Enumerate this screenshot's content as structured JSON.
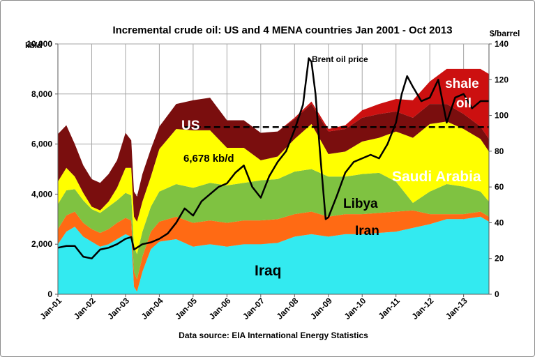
{
  "chart_data": {
    "type": "area",
    "title": "Incremental crude oil: US and 4 MENA countries  Jan 2001 - Oct 2013",
    "source": "Data source: EIA International Energy Statistics",
    "y_left": {
      "unit": "kb/d",
      "min": 0,
      "max": 10000,
      "ticks": [
        "0",
        "2,000",
        "4,000",
        "6,000",
        "8,000",
        "10,000"
      ]
    },
    "y_right": {
      "unit": "$/barrel",
      "min": 0,
      "max": 140,
      "ticks": [
        "0",
        "20",
        "40",
        "60",
        "80",
        "100",
        "120",
        "140"
      ]
    },
    "x_ticks": [
      "Jan-01",
      "Jan-02",
      "Jan-03",
      "Jan-04",
      "Jan-05",
      "Jan-06",
      "Jan-07",
      "Jan-08",
      "Jan-09",
      "Jan-10",
      "Jan-11",
      "Jan-12",
      "Jan-13"
    ],
    "x_range_years": [
      2001.0,
      2013.75
    ],
    "stack_order": [
      "Iraq",
      "Iran",
      "Libya",
      "Saudi Arabia",
      "US",
      "US shale oil"
    ],
    "colors": {
      "Iraq": "#33eaf0",
      "Iran": "#ff6a14",
      "Libya": "#7fc241",
      "Saudi Arabia": "#ffff00",
      "US": "#7a0e0e",
      "US shale oil": "#cc1010",
      "Brent oil price": "#000000",
      "average": "#000000"
    },
    "series": [
      {
        "name": "Iraq",
        "x": [
          2001.0,
          2001.25,
          2001.5,
          2001.75,
          2002.0,
          2002.25,
          2002.5,
          2002.75,
          2003.0,
          2003.17,
          2003.25,
          2003.34,
          2003.5,
          2003.75,
          2004.0,
          2004.5,
          2005.0,
          2005.5,
          2006.0,
          2006.5,
          2007.0,
          2007.5,
          2008.0,
          2008.5,
          2009.0,
          2009.5,
          2010.0,
          2010.5,
          2011.0,
          2011.5,
          2012.0,
          2012.5,
          2013.0,
          2013.5,
          2013.75
        ],
        "values": [
          2000,
          2500,
          2700,
          2300,
          2100,
          1900,
          2000,
          2200,
          2400,
          2300,
          300,
          100,
          900,
          1800,
          2100,
          2200,
          1900,
          2000,
          1900,
          2000,
          2000,
          2050,
          2300,
          2400,
          2300,
          2400,
          2400,
          2450,
          2500,
          2650,
          2800,
          3000,
          3000,
          3100,
          2900
        ]
      },
      {
        "name": "Iran",
        "x": [
          2001.0,
          2001.25,
          2001.5,
          2001.75,
          2002.0,
          2002.25,
          2002.5,
          2002.75,
          2003.0,
          2003.17,
          2003.25,
          2003.34,
          2003.5,
          2003.75,
          2004.0,
          2004.5,
          2005.0,
          2005.5,
          2006.0,
          2006.5,
          2007.0,
          2007.5,
          2008.0,
          2008.5,
          2009.0,
          2009.5,
          2010.0,
          2010.5,
          2011.0,
          2011.5,
          2012.0,
          2012.5,
          2013.0,
          2013.5,
          2013.75
        ],
        "values": [
          600,
          650,
          600,
          550,
          500,
          550,
          600,
          650,
          650,
          650,
          600,
          500,
          600,
          700,
          800,
          900,
          950,
          950,
          950,
          950,
          950,
          950,
          900,
          900,
          800,
          800,
          800,
          800,
          800,
          700,
          400,
          200,
          200,
          200,
          200
        ]
      },
      {
        "name": "Libya",
        "x": [
          2001.0,
          2001.25,
          2001.5,
          2001.75,
          2002.0,
          2002.25,
          2002.5,
          2002.75,
          2003.0,
          2003.17,
          2003.25,
          2003.34,
          2003.5,
          2003.75,
          2004.0,
          2004.5,
          2005.0,
          2005.5,
          2006.0,
          2006.5,
          2007.0,
          2007.5,
          2008.0,
          2008.5,
          2009.0,
          2009.5,
          2010.0,
          2010.5,
          2011.0,
          2011.5,
          2012.0,
          2012.5,
          2013.0,
          2013.5,
          2013.75
        ],
        "values": [
          1000,
          1000,
          900,
          900,
          800,
          800,
          900,
          900,
          1000,
          1000,
          1000,
          1000,
          1000,
          1000,
          1200,
          1300,
          1400,
          1500,
          1500,
          1500,
          1600,
          1600,
          1700,
          1700,
          1600,
          1500,
          1600,
          1600,
          1200,
          300,
          900,
          1200,
          1100,
          800,
          600
        ]
      },
      {
        "name": "Saudi Arabia",
        "x": [
          2001.0,
          2001.25,
          2001.5,
          2001.75,
          2002.0,
          2002.25,
          2002.5,
          2002.75,
          2003.0,
          2003.17,
          2003.25,
          2003.34,
          2003.5,
          2003.75,
          2004.0,
          2004.5,
          2005.0,
          2005.5,
          2006.0,
          2006.5,
          2007.0,
          2007.5,
          2008.0,
          2008.5,
          2009.0,
          2009.5,
          2010.0,
          2010.5,
          2011.0,
          2011.5,
          2012.0,
          2012.5,
          2013.0,
          2013.5,
          2013.75
        ],
        "values": [
          900,
          900,
          500,
          300,
          100,
          100,
          200,
          500,
          1000,
          1100,
          1200,
          1300,
          1200,
          1200,
          1700,
          2200,
          2300,
          2100,
          1500,
          1400,
          800,
          900,
          1300,
          1800,
          900,
          1000,
          1300,
          1400,
          2000,
          2600,
          2700,
          2500,
          2300,
          2100,
          2000
        ]
      },
      {
        "name": "US",
        "x": [
          2001.0,
          2001.25,
          2001.5,
          2001.75,
          2002.0,
          2002.25,
          2002.5,
          2002.75,
          2003.0,
          2003.17,
          2003.25,
          2003.34,
          2003.5,
          2003.75,
          2004.0,
          2004.5,
          2005.0,
          2005.5,
          2006.0,
          2006.5,
          2007.0,
          2007.5,
          2008.0,
          2008.5,
          2009.0,
          2009.5,
          2010.0,
          2010.5,
          2011.0,
          2011.5,
          2012.0,
          2012.5,
          2013.0,
          2013.5,
          2013.75
        ],
        "values": [
          1900,
          1700,
          1300,
          1100,
          1100,
          1100,
          1100,
          1100,
          1400,
          1100,
          1000,
          1000,
          1100,
          1100,
          900,
          1000,
          1200,
          1300,
          1100,
          1100,
          1100,
          1000,
          800,
          800,
          900,
          900,
          950,
          950,
          800,
          800,
          800,
          700,
          600,
          500,
          500
        ]
      },
      {
        "name": "US shale oil",
        "x": [
          2001.0,
          2001.25,
          2001.5,
          2001.75,
          2002.0,
          2002.25,
          2002.5,
          2002.75,
          2003.0,
          2003.17,
          2003.25,
          2003.34,
          2003.5,
          2003.75,
          2004.0,
          2004.5,
          2005.0,
          2005.5,
          2006.0,
          2006.5,
          2007.0,
          2007.5,
          2008.0,
          2008.5,
          2009.0,
          2009.5,
          2010.0,
          2010.5,
          2011.0,
          2011.5,
          2012.0,
          2012.5,
          2013.0,
          2013.5,
          2013.75
        ],
        "values": [
          0,
          0,
          0,
          0,
          0,
          0,
          0,
          0,
          0,
          0,
          0,
          0,
          0,
          0,
          0,
          0,
          0,
          0,
          0,
          0,
          0,
          0,
          50,
          100,
          100,
          150,
          300,
          400,
          500,
          700,
          900,
          1400,
          1800,
          2300,
          2600
        ]
      },
      {
        "name": "Brent oil price",
        "axis": "right",
        "x": [
          2001.0,
          2001.25,
          2001.5,
          2001.75,
          2002.0,
          2002.25,
          2002.5,
          2002.75,
          2003.0,
          2003.17,
          2003.25,
          2003.5,
          2003.75,
          2004.0,
          2004.25,
          2004.5,
          2004.75,
          2005.0,
          2005.25,
          2005.5,
          2005.75,
          2006.0,
          2006.25,
          2006.5,
          2006.75,
          2007.0,
          2007.25,
          2007.5,
          2007.75,
          2008.0,
          2008.25,
          2008.42,
          2008.5,
          2008.62,
          2008.75,
          2008.92,
          2009.0,
          2009.25,
          2009.5,
          2009.75,
          2010.0,
          2010.25,
          2010.5,
          2010.75,
          2011.0,
          2011.17,
          2011.33,
          2011.5,
          2011.75,
          2012.0,
          2012.25,
          2012.5,
          2012.75,
          2013.0,
          2013.25,
          2013.5,
          2013.75
        ],
        "values": [
          26,
          27,
          27,
          21,
          20,
          25,
          26,
          28,
          31,
          32,
          25,
          28,
          29,
          31,
          34,
          40,
          48,
          44,
          52,
          56,
          60,
          62,
          68,
          72,
          60,
          54,
          66,
          74,
          80,
          92,
          106,
          132,
          130,
          112,
          80,
          42,
          43,
          55,
          68,
          74,
          76,
          78,
          76,
          84,
          96,
          112,
          122,
          116,
          108,
          110,
          120,
          96,
          110,
          112,
          104,
          108,
          108
        ]
      }
    ],
    "reference_line": {
      "name": "average",
      "value": 6678,
      "from_year": 2004.75,
      "to_year": 2013.75,
      "label": "6,678 kb/d"
    },
    "annotations": {
      "brent": "Brent oil price",
      "us": "US",
      "shale": "shale oil",
      "saudi": "Saudi Arabia",
      "libya": "Libya",
      "iran": "Iran",
      "iraq": "Iraq"
    }
  }
}
